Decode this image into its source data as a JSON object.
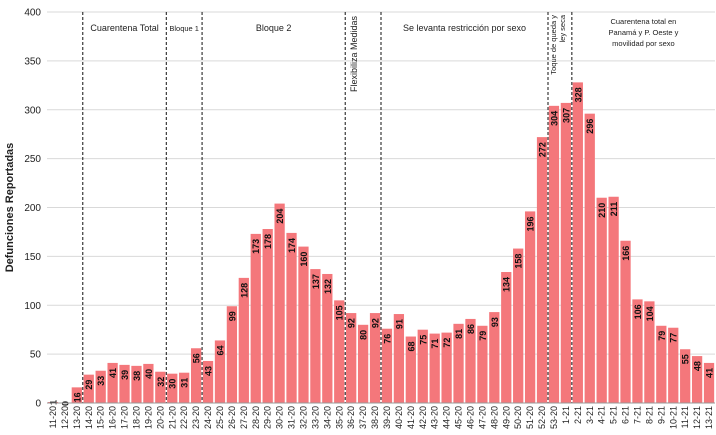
{
  "chart_data": {
    "type": "bar",
    "ylabel": "Defunciones Reportadas",
    "xlabel": "",
    "ylim": [
      0,
      400
    ],
    "yticks": [
      0,
      50,
      100,
      150,
      200,
      250,
      300,
      350,
      400
    ],
    "grid": true,
    "bar_color": "#f4777b",
    "categories": [
      "11-20",
      "12-20",
      "13-20",
      "14-20",
      "15-20",
      "16-20",
      "17-20",
      "18-20",
      "19-20",
      "20-20",
      "21-20",
      "22-20",
      "23-20",
      "24-20",
      "25-20",
      "26-20",
      "27-20",
      "28-20",
      "29-20",
      "30-20",
      "31-20",
      "32-20",
      "33-20",
      "34-20",
      "35-20",
      "36-20",
      "37-20",
      "38-20",
      "39-20",
      "40-20",
      "41-20",
      "42-20",
      "43-20",
      "44-20",
      "45-20",
      "46-20",
      "47-20",
      "48-20",
      "49-20",
      "50-20",
      "51-20",
      "52-20",
      "53-20",
      "1-21",
      "2-21",
      "3-21",
      "4-21",
      "5-21",
      "6-21",
      "7-21",
      "8-21",
      "9-21",
      "10-21",
      "11-21",
      "12-21",
      "13-21"
    ],
    "values": [
      1,
      0,
      16,
      29,
      33,
      41,
      39,
      38,
      40,
      32,
      30,
      31,
      56,
      43,
      64,
      99,
      128,
      173,
      178,
      204,
      174,
      160,
      137,
      132,
      105,
      92,
      80,
      92,
      76,
      91,
      68,
      75,
      71,
      72,
      81,
      86,
      79,
      93,
      134,
      158,
      196,
      272,
      304,
      307,
      328,
      296,
      210,
      211,
      166,
      106,
      104,
      79,
      77,
      55,
      48,
      41
    ],
    "annotations": [
      {
        "text": [
          "Cuarentena Total"
        ],
        "after_category": "13-20",
        "style": "normal"
      },
      {
        "text": [
          "Bloque 1"
        ],
        "after_category": "20-20",
        "style": "small"
      },
      {
        "text": [
          "Bloque 2"
        ],
        "after_category": "23-20",
        "style": "normal"
      },
      {
        "text": [
          "Flexibiliza Medidas"
        ],
        "after_category": "35-20",
        "style": "vertical"
      },
      {
        "text": [
          "Se levanta restricción por sexo"
        ],
        "after_category": "38-20",
        "style": "normal"
      },
      {
        "text": [
          "Toque de queda y",
          "ley seca"
        ],
        "after_category": "52-20",
        "style": "vertical-small"
      },
      {
        "text": [
          "Cuarentena total en",
          "Panamá y P. Oeste y",
          "movilidad por sexo"
        ],
        "after_category": "1-21",
        "style": "multi"
      }
    ]
  }
}
